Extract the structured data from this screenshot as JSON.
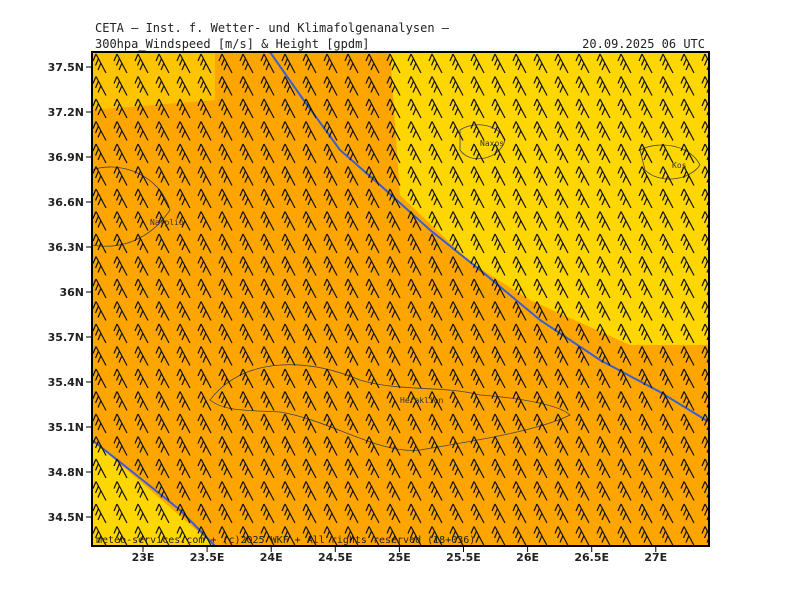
{
  "header": {
    "title": "CETA — Inst. f. Wetter- und Klimafolgenanalysen —",
    "parameter": "300hpa_Windspeed [m/s] & Height [gpdm]",
    "valid_time": "20.09.2025 06 UTC"
  },
  "axes": {
    "y_labels": [
      "37.5N",
      "37.2N",
      "36.9N",
      "36.6N",
      "36.3N",
      "36N",
      "35.7N",
      "35.4N",
      "35.1N",
      "34.8N",
      "34.5N"
    ],
    "x_labels": [
      "23E",
      "23.5E",
      "24E",
      "24.5E",
      "25E",
      "25.5E",
      "26E",
      "26.5E",
      "27E"
    ]
  },
  "places": [
    "Naxos",
    "Heraklion",
    "Kos",
    "Nafplio"
  ],
  "footer": "meteo-services.com + (c)2025 WKF + All rights reserved (18+036)"
}
